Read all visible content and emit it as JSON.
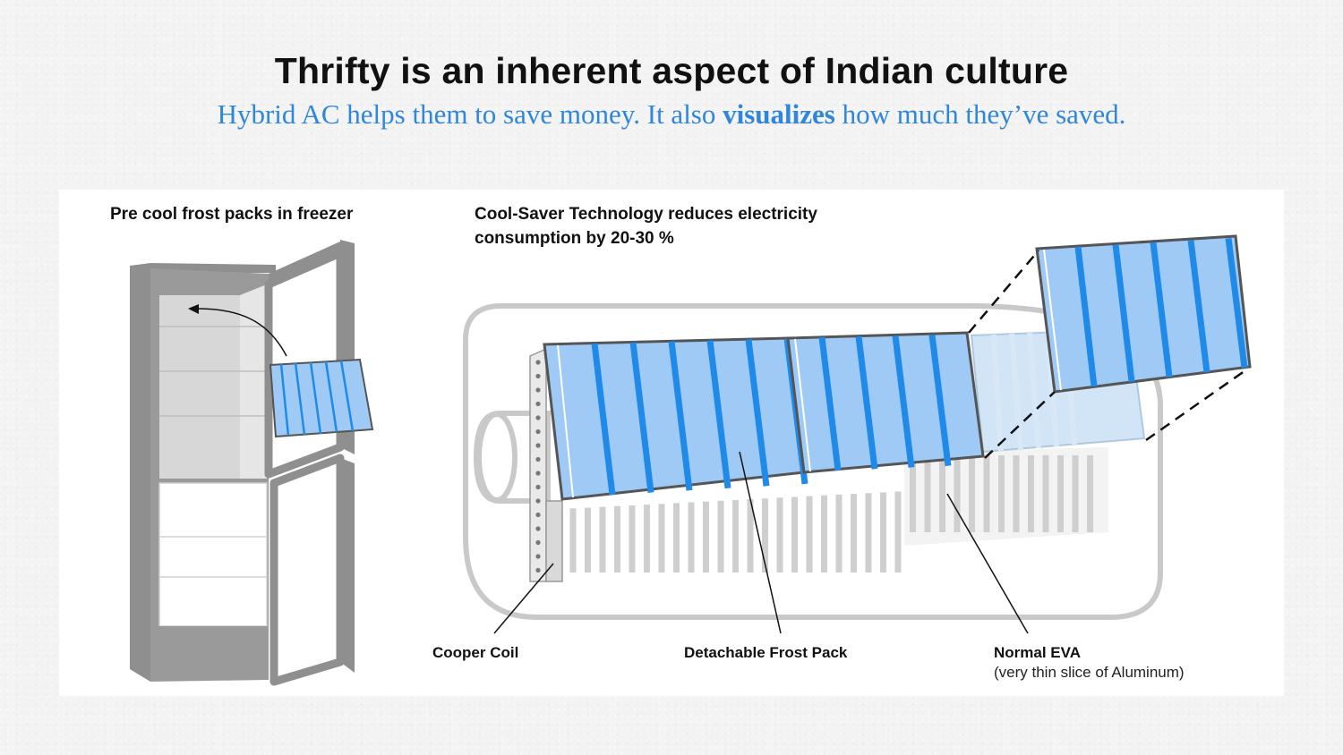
{
  "header": {
    "title": "Thrifty is an inherent aspect of Indian culture",
    "subtitle_pre": "Hybrid AC helps them to save money. It also ",
    "subtitle_bold": "visualizes",
    "subtitle_post": " how much they’ve saved."
  },
  "fridge_panel": {
    "heading": "Pre cool frost packs in freezer"
  },
  "ac_panel": {
    "heading_line1": "Cool-Saver Technology reduces electricity",
    "heading_line2": "consumption by 20-30 %"
  },
  "callouts": {
    "coil": "Cooper Coil",
    "frost_pack": "Detachable Frost Pack",
    "eva": "Normal EVA",
    "eva_note": "(very thin slice of Aluminum)"
  },
  "colors": {
    "accent_blue": "#2f86db",
    "pack_fill": "#9fcaf6",
    "pack_stripe": "#1f8ae8",
    "fridge_gray": "#8f8f8f"
  }
}
